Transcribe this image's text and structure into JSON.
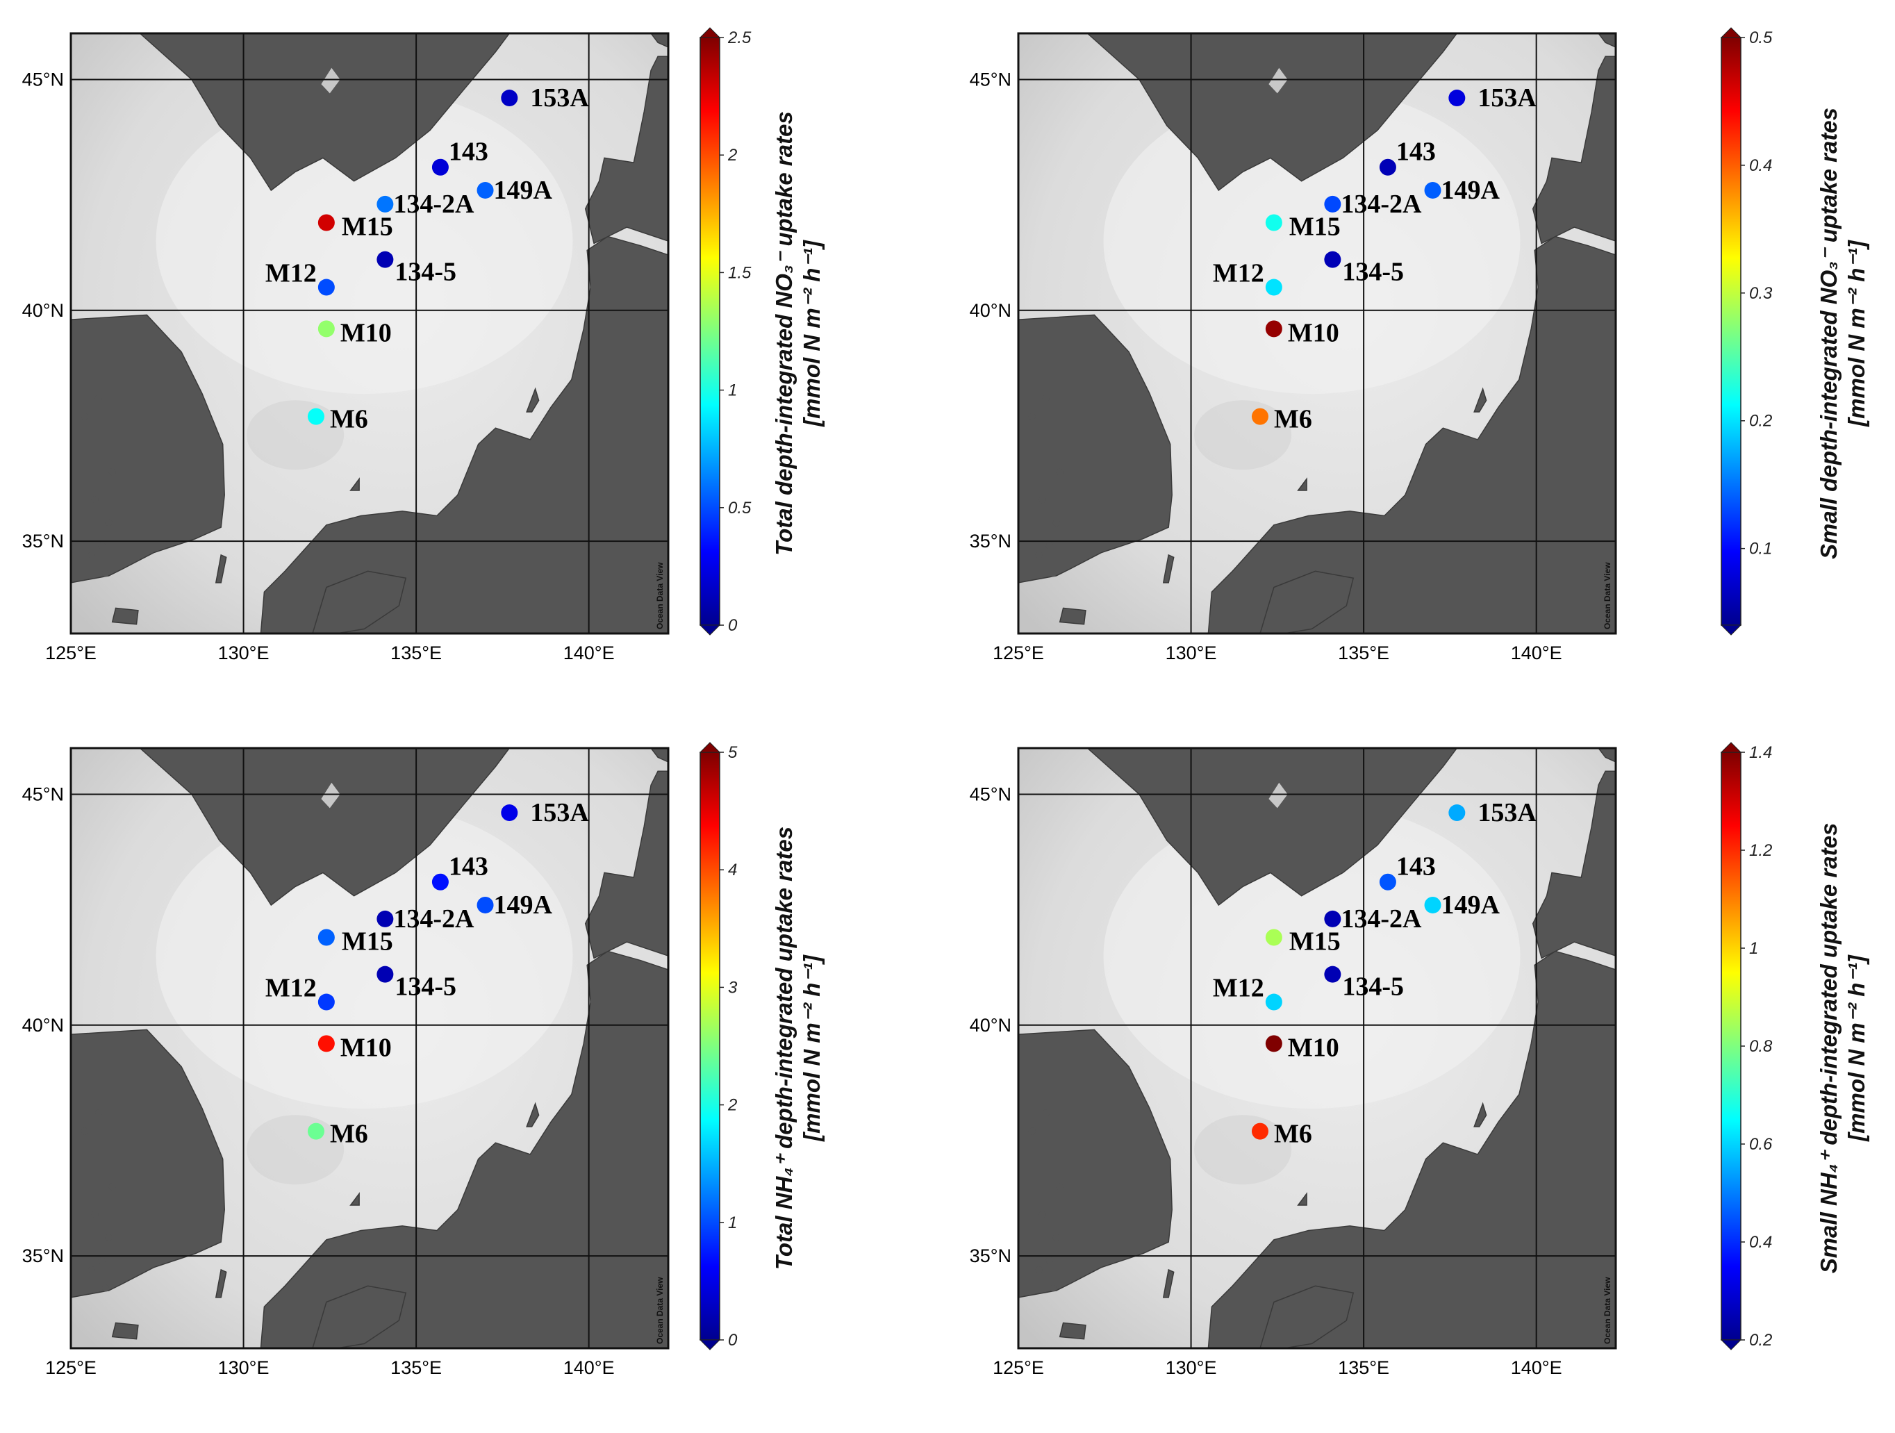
{
  "colormap": [
    "#00008f",
    "#0000ff",
    "#007fff",
    "#00ffff",
    "#7fff7f",
    "#ffff00",
    "#ff7f00",
    "#ff0000",
    "#7f0000"
  ],
  "map": {
    "lon_ticks": [
      125,
      130,
      135,
      140
    ],
    "lon_labels": [
      "125°E",
      "130°E",
      "135°E",
      "140°E"
    ],
    "lat_ticks": [
      35,
      40,
      45
    ],
    "lat_labels": [
      "35°N",
      "40°N",
      "45°N"
    ],
    "watermark": "Ocean Data View",
    "grid": true,
    "land_color": "#555555",
    "sea_color": "#e6e6e6"
  },
  "panels": [
    {
      "cb_title_line1": "Total depth-integrated NO₃⁻ uptake rates",
      "cb_title_line2": "[mmol N m⁻² h⁻¹]",
      "cb_range": [
        0,
        2.5
      ],
      "cb_ticks": [
        {
          "v": 0,
          "label": "0"
        },
        {
          "v": 0.5,
          "label": "0.5"
        },
        {
          "v": 1,
          "label": "1"
        },
        {
          "v": 1.5,
          "label": "1.5"
        },
        {
          "v": 2,
          "label": "2"
        },
        {
          "v": 2.5,
          "label": "2.5"
        }
      ],
      "stations": [
        {
          "label": "153A",
          "lon": 137.7,
          "lat": 44.6,
          "value": 0.15
        },
        {
          "label": "143",
          "lon": 135.7,
          "lat": 43.1,
          "value": 0.2
        },
        {
          "label": "134-2A",
          "lon": 134.1,
          "lat": 42.3,
          "value": 0.6
        },
        {
          "label": "149A",
          "lon": 137.0,
          "lat": 42.6,
          "value": 0.55
        },
        {
          "label": "M15",
          "lon": 132.4,
          "lat": 41.9,
          "value": 2.3
        },
        {
          "label": "134-5",
          "lon": 134.1,
          "lat": 41.1,
          "value": 0.1
        },
        {
          "label": "M12",
          "lon": 132.4,
          "lat": 40.5,
          "value": 0.5
        },
        {
          "label": "M10",
          "lon": 132.4,
          "lat": 39.6,
          "value": 1.3
        },
        {
          "label": "M6",
          "lon": 132.1,
          "lat": 37.7,
          "value": 0.95
        }
      ]
    },
    {
      "cb_title_line1": "Small depth-integrated NO₃⁻ uptake rates",
      "cb_title_line2": "[mmol N m⁻² h⁻¹]",
      "cb_range": [
        0.04,
        0.5
      ],
      "cb_ticks": [
        {
          "v": 0.1,
          "label": "0.1"
        },
        {
          "v": 0.2,
          "label": "0.2"
        },
        {
          "v": 0.3,
          "label": "0.3"
        },
        {
          "v": 0.4,
          "label": "0.4"
        },
        {
          "v": 0.5,
          "label": "0.5"
        }
      ],
      "stations": [
        {
          "label": "153A",
          "lon": 137.7,
          "lat": 44.6,
          "value": 0.08
        },
        {
          "label": "143",
          "lon": 135.7,
          "lat": 43.1,
          "value": 0.06
        },
        {
          "label": "134-2A",
          "lon": 134.1,
          "lat": 42.3,
          "value": 0.13
        },
        {
          "label": "149A",
          "lon": 137.0,
          "lat": 42.6,
          "value": 0.14
        },
        {
          "label": "M15",
          "lon": 132.4,
          "lat": 41.9,
          "value": 0.22
        },
        {
          "label": "134-5",
          "lon": 134.1,
          "lat": 41.1,
          "value": 0.06
        },
        {
          "label": "M12",
          "lon": 132.4,
          "lat": 40.5,
          "value": 0.2
        },
        {
          "label": "M10",
          "lon": 132.4,
          "lat": 39.6,
          "value": 0.49
        },
        {
          "label": "M6",
          "lon": 132.0,
          "lat": 37.7,
          "value": 0.39
        }
      ]
    },
    {
      "cb_title_line1": "Total NH₄⁺ depth-integrated uptake rates",
      "cb_title_line2": "[mmol N m⁻² h⁻¹]",
      "cb_range": [
        0,
        5
      ],
      "cb_ticks": [
        {
          "v": 0,
          "label": "0"
        },
        {
          "v": 1,
          "label": "1"
        },
        {
          "v": 2,
          "label": "2"
        },
        {
          "v": 3,
          "label": "3"
        },
        {
          "v": 4,
          "label": "4"
        },
        {
          "v": 5,
          "label": "5"
        }
      ],
      "stations": [
        {
          "label": "153A",
          "lon": 137.7,
          "lat": 44.6,
          "value": 0.5
        },
        {
          "label": "143",
          "lon": 135.7,
          "lat": 43.1,
          "value": 0.7
        },
        {
          "label": "134-2A",
          "lon": 134.1,
          "lat": 42.3,
          "value": 0.2
        },
        {
          "label": "149A",
          "lon": 137.0,
          "lat": 42.6,
          "value": 1.0
        },
        {
          "label": "M15",
          "lon": 132.4,
          "lat": 41.9,
          "value": 1.1
        },
        {
          "label": "134-5",
          "lon": 134.1,
          "lat": 41.1,
          "value": 0.2
        },
        {
          "label": "M12",
          "lon": 132.4,
          "lat": 40.5,
          "value": 0.9
        },
        {
          "label": "M10",
          "lon": 132.4,
          "lat": 39.6,
          "value": 4.3
        },
        {
          "label": "M6",
          "lon": 132.1,
          "lat": 37.7,
          "value": 2.4
        }
      ]
    },
    {
      "cb_title_line1": "Small NH₄⁺ depth-integrated uptake rates",
      "cb_title_line2": "[mmol N m⁻² h⁻¹]",
      "cb_range": [
        0.2,
        1.4
      ],
      "cb_ticks": [
        {
          "v": 0.2,
          "label": "0.2"
        },
        {
          "v": 0.4,
          "label": "0.4"
        },
        {
          "v": 0.6,
          "label": "0.6"
        },
        {
          "v": 0.8,
          "label": "0.8"
        },
        {
          "v": 1,
          "label": "1"
        },
        {
          "v": 1.2,
          "label": "1.2"
        },
        {
          "v": 1.4,
          "label": "1.4"
        }
      ],
      "stations": [
        {
          "label": "153A",
          "lon": 137.7,
          "lat": 44.6,
          "value": 0.55
        },
        {
          "label": "143",
          "lon": 135.7,
          "lat": 43.1,
          "value": 0.45
        },
        {
          "label": "134-2A",
          "lon": 134.1,
          "lat": 42.3,
          "value": 0.25
        },
        {
          "label": "149A",
          "lon": 137.0,
          "lat": 42.6,
          "value": 0.6
        },
        {
          "label": "M15",
          "lon": 132.4,
          "lat": 41.9,
          "value": 0.85
        },
        {
          "label": "134-5",
          "lon": 134.1,
          "lat": 41.1,
          "value": 0.25
        },
        {
          "label": "M12",
          "lon": 132.4,
          "lat": 40.5,
          "value": 0.6
        },
        {
          "label": "M10",
          "lon": 132.4,
          "lat": 39.6,
          "value": 1.4
        },
        {
          "label": "M6",
          "lon": 132.0,
          "lat": 37.7,
          "value": 1.2
        }
      ]
    }
  ]
}
